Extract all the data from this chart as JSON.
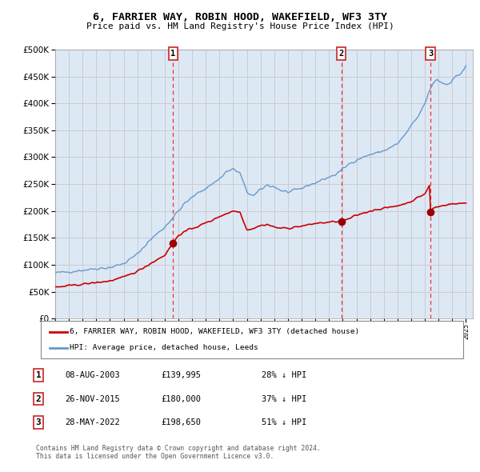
{
  "title": "6, FARRIER WAY, ROBIN HOOD, WAKEFIELD, WF3 3TY",
  "subtitle": "Price paid vs. HM Land Registry's House Price Index (HPI)",
  "background_color": "#ffffff",
  "plot_bg_color": "#dde8f5",
  "hpi_color": "#6699cc",
  "price_color": "#cc0000",
  "marker_color": "#990000",
  "dashed_line_color": "#ee3333",
  "grid_color": "#cccccc",
  "ylim": [
    0,
    500000
  ],
  "yticks": [
    0,
    50000,
    100000,
    150000,
    200000,
    250000,
    300000,
    350000,
    400000,
    450000,
    500000
  ],
  "sale_year_floats": [
    2003.604,
    2015.899,
    2022.411
  ],
  "sale_prices": [
    139995,
    180000,
    198650
  ],
  "sale_labels": [
    "1",
    "2",
    "3"
  ],
  "legend_entries": [
    "6, FARRIER WAY, ROBIN HOOD, WAKEFIELD, WF3 3TY (detached house)",
    "HPI: Average price, detached house, Leeds"
  ],
  "table_rows": [
    [
      "1",
      "08-AUG-2003",
      "£139,995",
      "28% ↓ HPI"
    ],
    [
      "2",
      "26-NOV-2015",
      "£180,000",
      "37% ↓ HPI"
    ],
    [
      "3",
      "28-MAY-2022",
      "£198,650",
      "51% ↓ HPI"
    ]
  ],
  "footer": "Contains HM Land Registry data © Crown copyright and database right 2024.\nThis data is licensed under the Open Government Licence v3.0.",
  "hpi_anchors_x": [
    1995.0,
    1996.0,
    1997.0,
    1998.0,
    1999.0,
    2000.0,
    2001.0,
    2002.0,
    2003.0,
    2003.5,
    2004.0,
    2004.5,
    2005.0,
    2005.5,
    2006.0,
    2007.0,
    2007.5,
    2008.0,
    2008.5,
    2009.0,
    2009.5,
    2010.0,
    2010.5,
    2011.0,
    2011.5,
    2012.0,
    2012.5,
    2013.0,
    2013.5,
    2014.0,
    2014.5,
    2015.0,
    2015.5,
    2016.0,
    2016.5,
    2017.0,
    2017.5,
    2018.0,
    2018.5,
    2019.0,
    2019.5,
    2020.0,
    2020.5,
    2021.0,
    2021.5,
    2022.0,
    2022.3,
    2022.6,
    2022.9,
    2023.0,
    2023.3,
    2023.6,
    2023.9,
    2024.0,
    2024.3,
    2024.6,
    2024.9,
    2025.0
  ],
  "hpi_anchors_y": [
    85000,
    87000,
    90000,
    93000,
    95000,
    102000,
    120000,
    148000,
    170000,
    185000,
    200000,
    215000,
    225000,
    235000,
    242000,
    260000,
    273000,
    278000,
    270000,
    235000,
    228000,
    240000,
    248000,
    245000,
    238000,
    235000,
    238000,
    242000,
    248000,
    252000,
    258000,
    263000,
    268000,
    278000,
    288000,
    295000,
    300000,
    305000,
    308000,
    312000,
    318000,
    325000,
    340000,
    358000,
    375000,
    400000,
    420000,
    438000,
    445000,
    442000,
    438000,
    435000,
    440000,
    445000,
    450000,
    455000,
    465000,
    470000
  ],
  "pp_anchors_x": [
    1995.0,
    1996.0,
    1997.0,
    1998.0,
    1999.0,
    2000.0,
    2001.0,
    2002.0,
    2003.0,
    2003.604,
    2004.0,
    2004.5,
    2005.0,
    2005.5,
    2006.0,
    2006.5,
    2007.0,
    2007.5,
    2008.0,
    2008.5,
    2009.0,
    2009.5,
    2010.0,
    2010.5,
    2011.0,
    2011.5,
    2012.0,
    2012.5,
    2013.0,
    2013.5,
    2014.0,
    2014.5,
    2015.0,
    2015.5,
    2015.899,
    2016.0,
    2016.5,
    2017.0,
    2017.5,
    2018.0,
    2018.5,
    2019.0,
    2019.5,
    2020.0,
    2020.5,
    2021.0,
    2021.5,
    2022.0,
    2022.35,
    2022.411,
    2022.45,
    2022.6,
    2022.9,
    2023.0,
    2023.3,
    2023.6,
    2023.9,
    2024.0,
    2024.3,
    2024.6,
    2024.9,
    2025.0
  ],
  "pp_anchors_y": [
    58000,
    61000,
    64000,
    67000,
    70000,
    77000,
    88000,
    103000,
    118000,
    139995,
    155000,
    162000,
    168000,
    172000,
    178000,
    183000,
    190000,
    195000,
    200000,
    198000,
    165000,
    168000,
    173000,
    175000,
    170000,
    168000,
    168000,
    170000,
    172000,
    174000,
    177000,
    178000,
    179000,
    180500,
    180000,
    181000,
    186000,
    192000,
    196000,
    200000,
    203000,
    205000,
    207000,
    210000,
    213000,
    218000,
    225000,
    232000,
    248000,
    198650,
    200000,
    205000,
    208000,
    208000,
    210000,
    212000,
    213000,
    213000,
    213000,
    214000,
    215000,
    216000
  ]
}
